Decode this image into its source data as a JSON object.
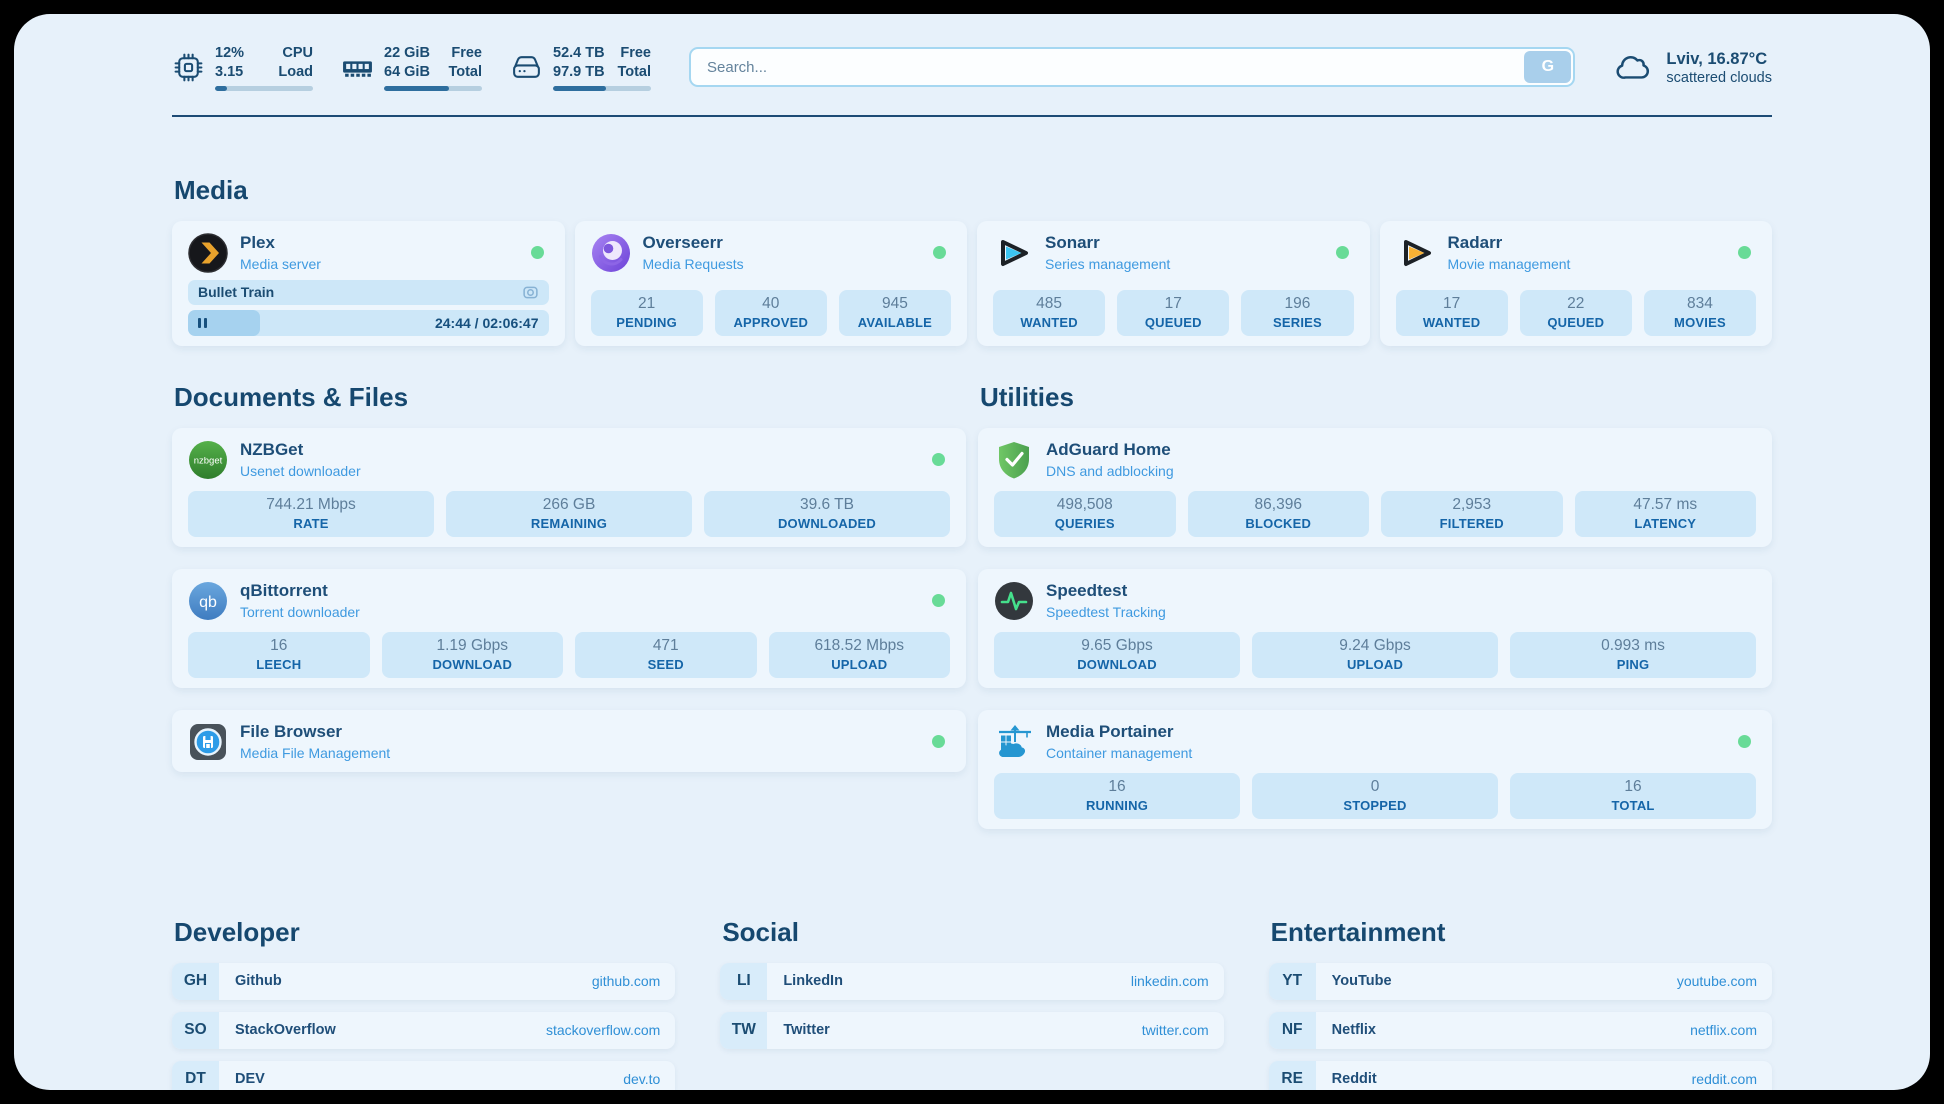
{
  "header": {
    "monitors": [
      {
        "icon": "cpu-icon",
        "values": [
          "12%",
          "3.15"
        ],
        "labels": [
          "CPU",
          "Load"
        ],
        "progress": 12
      },
      {
        "icon": "memory-icon",
        "values": [
          "22 GiB",
          "64 GiB"
        ],
        "labels": [
          "Free",
          "Total"
        ],
        "progress": 66
      },
      {
        "icon": "storage-icon",
        "values": [
          "52.4 TB",
          "97.9 TB"
        ],
        "labels": [
          "Free",
          "Total"
        ],
        "progress": 54
      }
    ],
    "search": {
      "placeholder": "Search...",
      "button_label": "G"
    },
    "weather": {
      "icon": "cloud-icon",
      "location": "Lviv, 16.87°C",
      "condition": "scattered clouds"
    }
  },
  "sections": {
    "media": {
      "title": "Media",
      "plex": {
        "icon": "plex-icon",
        "name": "Plex",
        "subtitle": "Media server",
        "status": "online",
        "now_playing": {
          "title": "Bullet Train",
          "time": "24:44 / 02:06:47",
          "progress": 20,
          "state": "paused"
        }
      },
      "overseerr": {
        "icon": "overseerr-icon",
        "name": "Overseerr",
        "subtitle": "Media Requests",
        "status": "online",
        "stats": [
          {
            "value": "21",
            "label": "PENDING"
          },
          {
            "value": "40",
            "label": "APPROVED"
          },
          {
            "value": "945",
            "label": "AVAILABLE"
          }
        ]
      },
      "sonarr": {
        "icon": "sonarr-icon",
        "name": "Sonarr",
        "subtitle": "Series management",
        "status": "online",
        "stats": [
          {
            "value": "485",
            "label": "WANTED"
          },
          {
            "value": "17",
            "label": "QUEUED"
          },
          {
            "value": "196",
            "label": "SERIES"
          }
        ]
      },
      "radarr": {
        "icon": "radarr-icon",
        "name": "Radarr",
        "subtitle": "Movie management",
        "status": "online",
        "stats": [
          {
            "value": "17",
            "label": "WANTED"
          },
          {
            "value": "22",
            "label": "QUEUED"
          },
          {
            "value": "834",
            "label": "MOVIES"
          }
        ]
      }
    },
    "documents": {
      "title": "Documents & Files",
      "nzbget": {
        "icon": "nzbget-icon",
        "name": "NZBGet",
        "subtitle": "Usenet downloader",
        "status": "online",
        "stats": [
          {
            "value": "744.21 Mbps",
            "label": "RATE"
          },
          {
            "value": "266 GB",
            "label": "REMAINING"
          },
          {
            "value": "39.6 TB",
            "label": "DOWNLOADED"
          }
        ]
      },
      "qbittorrent": {
        "icon": "qbittorrent-icon",
        "name": "qBittorrent",
        "subtitle": "Torrent downloader",
        "status": "online",
        "stats": [
          {
            "value": "16",
            "label": "LEECH"
          },
          {
            "value": "1.19 Gbps",
            "label": "DOWNLOAD"
          },
          {
            "value": "471",
            "label": "SEED"
          },
          {
            "value": "618.52 Mbps",
            "label": "UPLOAD"
          }
        ]
      },
      "filebrowser": {
        "icon": "filebrowser-icon",
        "name": "File Browser",
        "subtitle": "Media File Management",
        "status": "online"
      }
    },
    "utilities": {
      "title": "Utilities",
      "adguard": {
        "icon": "adguard-icon",
        "name": "AdGuard Home",
        "subtitle": "DNS and adblocking",
        "stats": [
          {
            "value": "498,508",
            "label": "QUERIES"
          },
          {
            "value": "86,396",
            "label": "BLOCKED"
          },
          {
            "value": "2,953",
            "label": "FILTERED"
          },
          {
            "value": "47.57 ms",
            "label": "LATENCY"
          }
        ]
      },
      "speedtest": {
        "icon": "speedtest-icon",
        "name": "Speedtest",
        "subtitle": "Speedtest Tracking",
        "stats": [
          {
            "value": "9.65 Gbps",
            "label": "DOWNLOAD"
          },
          {
            "value": "9.24 Gbps",
            "label": "UPLOAD"
          },
          {
            "value": "0.993 ms",
            "label": "PING"
          }
        ]
      },
      "portainer": {
        "icon": "portainer-icon",
        "name": "Media Portainer",
        "subtitle": "Container management",
        "status": "online",
        "stats": [
          {
            "value": "16",
            "label": "RUNNING"
          },
          {
            "value": "0",
            "label": "STOPPED"
          },
          {
            "value": "16",
            "label": "TOTAL"
          }
        ]
      }
    }
  },
  "bookmarks": [
    {
      "title": "Developer",
      "links": [
        {
          "abbr": "GH",
          "name": "Github",
          "url": "github.com"
        },
        {
          "abbr": "SO",
          "name": "StackOverflow",
          "url": "stackoverflow.com"
        },
        {
          "abbr": "DT",
          "name": "DEV",
          "url": "dev.to"
        }
      ]
    },
    {
      "title": "Social",
      "links": [
        {
          "abbr": "LI",
          "name": "LinkedIn",
          "url": "linkedin.com"
        },
        {
          "abbr": "TW",
          "name": "Twitter",
          "url": "twitter.com"
        }
      ]
    },
    {
      "title": "Entertainment",
      "links": [
        {
          "abbr": "YT",
          "name": "YouTube",
          "url": "youtube.com"
        },
        {
          "abbr": "NF",
          "name": "Netflix",
          "url": "netflix.com"
        },
        {
          "abbr": "RE",
          "name": "Reddit",
          "url": "reddit.com"
        }
      ]
    }
  ],
  "colors": {
    "accent": "#2e6e9e",
    "status_online": "#68db97",
    "link": "#2f8fd6",
    "subtitle": "#3f9ae0",
    "page_bg": "#e7f1fa",
    "card_bg": "#eef6fd",
    "stat_bg": "#cfe8f9"
  }
}
